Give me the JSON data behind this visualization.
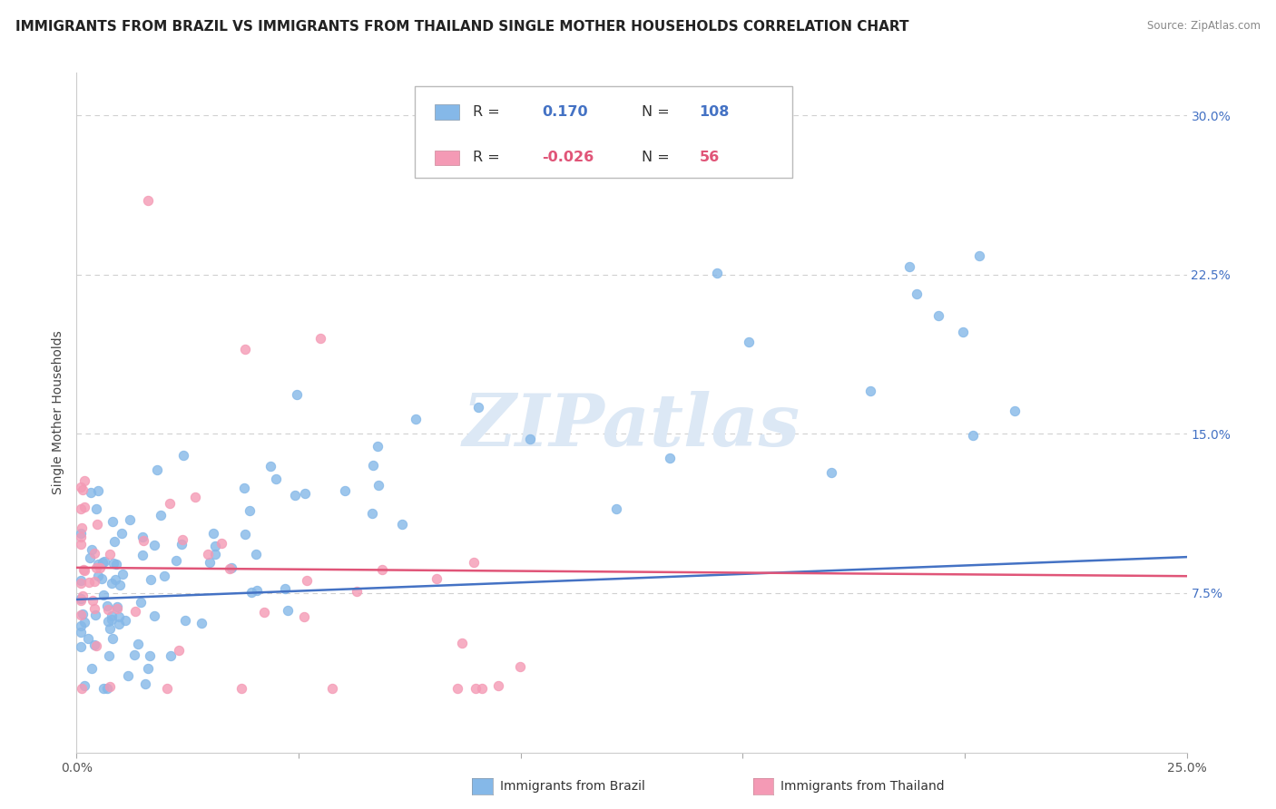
{
  "title": "IMMIGRANTS FROM BRAZIL VS IMMIGRANTS FROM THAILAND SINGLE MOTHER HOUSEHOLDS CORRELATION CHART",
  "source": "Source: ZipAtlas.com",
  "ylabel": "Single Mother Households",
  "xlim": [
    0.0,
    0.25
  ],
  "ylim": [
    0.0,
    0.32
  ],
  "xtick_positions": [
    0.0,
    0.05,
    0.1,
    0.15,
    0.2,
    0.25
  ],
  "xticklabels": [
    "0.0%",
    "",
    "",
    "",
    "",
    "25.0%"
  ],
  "ytick_positions": [
    0.075,
    0.15,
    0.225,
    0.3
  ],
  "ytick_labels": [
    "7.5%",
    "15.0%",
    "22.5%",
    "30.0%"
  ],
  "brazil_color": "#85b8e8",
  "thailand_color": "#f49ab5",
  "brazil_r": 0.17,
  "brazil_n": 108,
  "thailand_r": -0.026,
  "thailand_n": 56,
  "brazil_line_x": [
    0.0,
    0.25
  ],
  "brazil_line_y": [
    0.072,
    0.092
  ],
  "thailand_line_x": [
    0.0,
    0.25
  ],
  "thailand_line_y": [
    0.087,
    0.083
  ],
  "watermark": "ZIPatlas",
  "watermark_color": "#dce8f5",
  "legend_brazil_label": "Immigrants from Brazil",
  "legend_thailand_label": "Immigrants from Thailand",
  "r_color_brazil": "#4472c4",
  "r_color_thailand": "#e05578",
  "title_fontsize": 11,
  "axis_label_fontsize": 10,
  "tick_fontsize": 10,
  "background_color": "#ffffff",
  "grid_color": "#d0d0d0",
  "right_tick_color": "#4472c4"
}
